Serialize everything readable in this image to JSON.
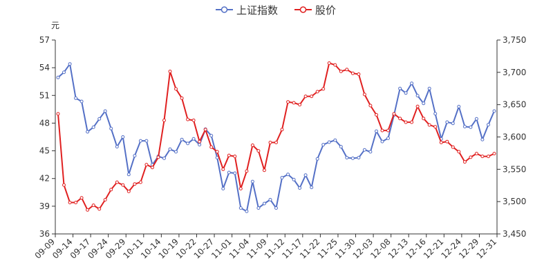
{
  "chart_data": {
    "type": "line",
    "title": "",
    "legend_position": "top-center",
    "grid": false,
    "left_axis": {
      "unit": "元",
      "min": 36,
      "max": 57,
      "ticks": [
        "36",
        "39",
        "42",
        "45",
        "48",
        "51",
        "54",
        "57"
      ]
    },
    "right_axis": {
      "min": 3450,
      "max": 3750,
      "ticks": [
        "3,450",
        "3,500",
        "3,550",
        "3,600",
        "3,650",
        "3,700",
        "3,750"
      ]
    },
    "x_tick_labels": [
      "09-09",
      "09-14",
      "09-17",
      "09-24",
      "09-29",
      "10-11",
      "10-14",
      "10-19",
      "10-22",
      "10-27",
      "11-01",
      "11-04",
      "11-09",
      "11-12",
      "11-17",
      "11-22",
      "11-25",
      "11-30",
      "12-03",
      "12-08",
      "12-13",
      "12-16",
      "12-21",
      "12-24",
      "12-29",
      "12-31"
    ],
    "series": [
      {
        "name": "上证指数",
        "axis": "right",
        "color": "#5470c6",
        "values": [
          3692,
          3700,
          3713,
          3660,
          3655,
          3608,
          3615,
          3628,
          3640,
          3613,
          3585,
          3600,
          3542,
          3571,
          3594,
          3594,
          3557,
          3570,
          3567,
          3581,
          3577,
          3596,
          3590,
          3597,
          3588,
          3612,
          3602,
          3568,
          3520,
          3545,
          3544,
          3490,
          3485,
          3531,
          3490,
          3497,
          3503,
          3490,
          3537,
          3542,
          3534,
          3521,
          3541,
          3522,
          3566,
          3588,
          3592,
          3595,
          3585,
          3568,
          3567,
          3568,
          3580,
          3577,
          3609,
          3593,
          3598,
          3634,
          3675,
          3668,
          3683,
          3664,
          3652,
          3675,
          3636,
          3597,
          3623,
          3621,
          3647,
          3616,
          3615,
          3628,
          3596,
          3619,
          3640
        ]
      },
      {
        "name": "股价",
        "axis": "left",
        "color": "#e02020",
        "values": [
          49.0,
          41.3,
          39.4,
          39.4,
          39.9,
          38.6,
          39.1,
          38.7,
          39.7,
          40.8,
          41.6,
          41.3,
          40.6,
          41.4,
          41.6,
          43.5,
          43.2,
          44.3,
          48.3,
          53.6,
          51.7,
          50.7,
          48.4,
          48.3,
          46.0,
          47.3,
          45.4,
          44.9,
          43.0,
          44.5,
          44.4,
          40.9,
          42.8,
          45.6,
          45.0,
          42.9,
          45.9,
          45.9,
          47.3,
          50.3,
          50.2,
          50.0,
          50.9,
          50.9,
          51.4,
          51.7,
          54.5,
          54.3,
          53.6,
          53.8,
          53.4,
          53.3,
          51.1,
          49.9,
          48.9,
          47.2,
          47.2,
          49.0,
          48.5,
          48.1,
          48.1,
          49.8,
          48.5,
          47.8,
          47.6,
          45.9,
          46.0,
          45.4,
          44.9,
          43.8,
          44.3,
          44.7,
          44.4,
          44.4,
          44.7
        ]
      }
    ]
  }
}
